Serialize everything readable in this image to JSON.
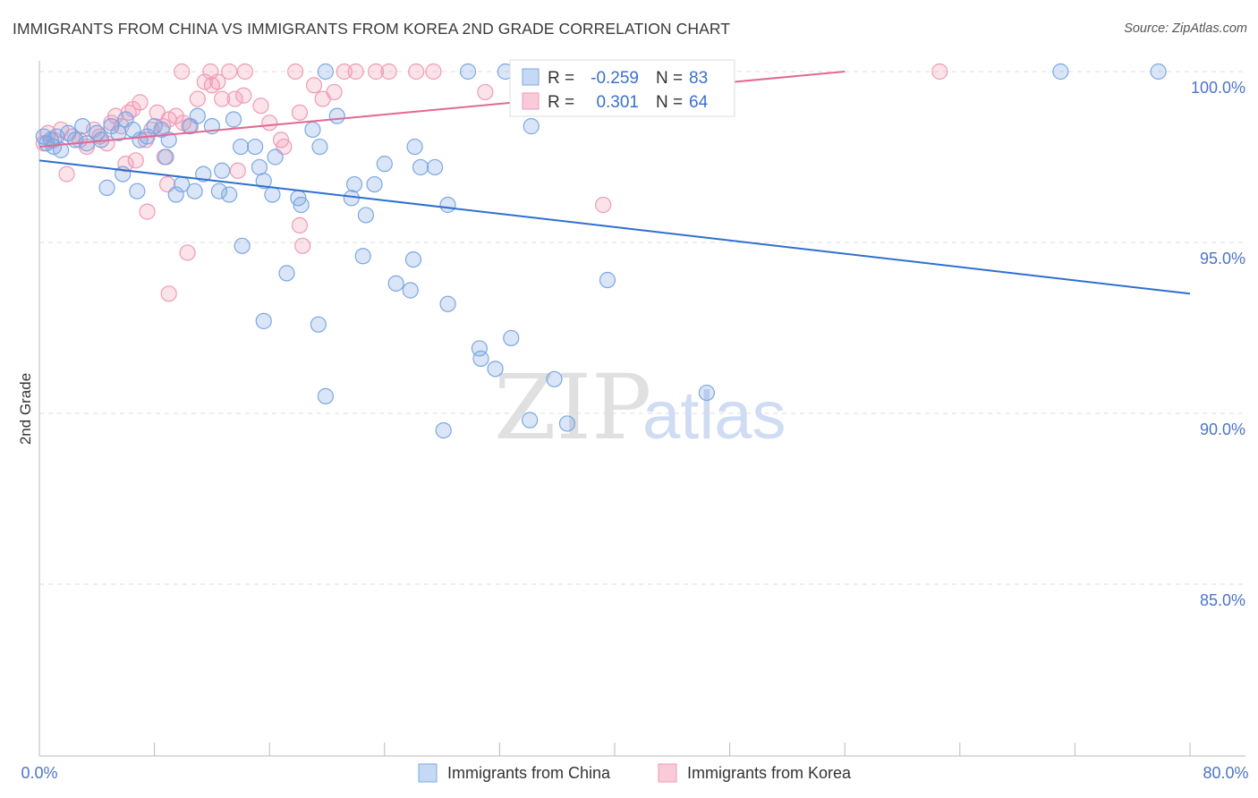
{
  "title": "IMMIGRANTS FROM CHINA VS IMMIGRANTS FROM KOREA 2ND GRADE CORRELATION CHART",
  "source": "Source: ZipAtlas.com",
  "watermark": {
    "zip": "ZIP",
    "atlas": "atlas"
  },
  "stats": {
    "china": {
      "r_label": "R =",
      "r_value": "-0.259",
      "n_label": "N =",
      "n_value": "83"
    },
    "korea": {
      "r_label": "R =",
      "r_value": "0.301",
      "n_label": "N =",
      "n_value": "64"
    }
  },
  "chart_data": {
    "type": "scatter",
    "title": "IMMIGRANTS FROM CHINA VS IMMIGRANTS FROM KOREA 2ND GRADE CORRELATION CHART",
    "xlabel": "",
    "ylabel": "2nd Grade",
    "xlim": [
      0,
      80
    ],
    "ylim": [
      80.0,
      101.0
    ],
    "x_tick_labels": [
      "0.0%",
      "80.0%"
    ],
    "y_ticks": [
      85.0,
      90.0,
      95.0,
      100.0
    ],
    "y_tick_labels": [
      "85.0%",
      "90.0%",
      "95.0%",
      "100.0%"
    ],
    "grid": "horizontal dashed",
    "legend": [
      "Immigrants from China",
      "Immigrants from Korea"
    ],
    "colors": {
      "china": "#7aa7e3",
      "china_line": "#2f6fd0",
      "korea": "#f09ab5",
      "korea_line": "#e06a92",
      "axis_text": "#4c74c9"
    },
    "series": [
      {
        "name": "Immigrants from China",
        "r": -0.259,
        "n": 83,
        "trend": {
          "x": [
            0,
            80
          ],
          "y": [
            97.4,
            93.5
          ]
        },
        "points": [
          [
            0.3,
            98.1
          ],
          [
            0.5,
            97.9
          ],
          [
            0.8,
            98.0
          ],
          [
            1.0,
            97.8
          ],
          [
            1.2,
            98.1
          ],
          [
            1.5,
            97.7
          ],
          [
            2.0,
            98.2
          ],
          [
            2.5,
            98.0
          ],
          [
            3.0,
            98.4
          ],
          [
            3.3,
            97.9
          ],
          [
            4.0,
            98.2
          ],
          [
            4.3,
            98.0
          ],
          [
            5.0,
            98.4
          ],
          [
            5.5,
            98.2
          ],
          [
            6.0,
            98.6
          ],
          [
            6.5,
            98.3
          ],
          [
            7.0,
            98.0
          ],
          [
            7.5,
            98.1
          ],
          [
            8.0,
            98.4
          ],
          [
            8.5,
            98.3
          ],
          [
            9.0,
            98.0
          ],
          [
            10.5,
            98.4
          ],
          [
            11.0,
            98.7
          ],
          [
            12.0,
            98.4
          ],
          [
            13.5,
            98.6
          ],
          [
            14.0,
            97.8
          ],
          [
            15.0,
            97.8
          ],
          [
            5.8,
            97.0
          ],
          [
            4.7,
            96.6
          ],
          [
            6.8,
            96.5
          ],
          [
            8.8,
            97.5
          ],
          [
            9.5,
            96.4
          ],
          [
            9.9,
            96.7
          ],
          [
            10.8,
            96.5
          ],
          [
            11.4,
            97.0
          ],
          [
            12.5,
            96.5
          ],
          [
            12.7,
            97.1
          ],
          [
            13.2,
            96.4
          ],
          [
            15.3,
            97.2
          ],
          [
            15.6,
            96.8
          ],
          [
            16.2,
            96.4
          ],
          [
            16.4,
            97.5
          ],
          [
            18.2,
            96.1
          ],
          [
            18.0,
            96.3
          ],
          [
            19.5,
            97.8
          ],
          [
            19.0,
            98.3
          ],
          [
            20.7,
            98.7
          ],
          [
            21.7,
            96.3
          ],
          [
            21.9,
            96.7
          ],
          [
            22.7,
            95.8
          ],
          [
            23.3,
            96.7
          ],
          [
            24.0,
            97.3
          ],
          [
            26.1,
            97.8
          ],
          [
            26.5,
            97.2
          ],
          [
            27.5,
            97.2
          ],
          [
            28.4,
            96.1
          ],
          [
            14.1,
            94.9
          ],
          [
            17.2,
            94.1
          ],
          [
            22.5,
            94.6
          ],
          [
            24.8,
            93.8
          ],
          [
            25.8,
            93.6
          ],
          [
            26.0,
            94.5
          ],
          [
            28.4,
            93.2
          ],
          [
            15.6,
            92.7
          ],
          [
            19.4,
            92.6
          ],
          [
            30.6,
            91.9
          ],
          [
            30.7,
            91.6
          ],
          [
            31.7,
            91.3
          ],
          [
            32.8,
            92.2
          ],
          [
            19.9,
            90.5
          ],
          [
            28.1,
            89.5
          ],
          [
            34.1,
            89.8
          ],
          [
            35.8,
            91.0
          ],
          [
            36.7,
            89.7
          ],
          [
            39.5,
            93.9
          ],
          [
            46.4,
            90.6
          ],
          [
            34.2,
            98.4
          ],
          [
            19.9,
            100.0
          ],
          [
            29.8,
            100.0
          ],
          [
            32.4,
            100.0
          ],
          [
            33.9,
            100.0
          ],
          [
            71.0,
            100.0
          ],
          [
            77.8,
            100.0
          ]
        ]
      },
      {
        "name": "Immigrants from Korea",
        "r": 0.301,
        "n": 64,
        "trend": {
          "x": [
            0,
            56
          ],
          "y": [
            97.8,
            100.0
          ]
        },
        "points": [
          [
            0.3,
            97.9
          ],
          [
            0.6,
            98.2
          ],
          [
            1.0,
            98.0
          ],
          [
            1.5,
            98.3
          ],
          [
            1.9,
            97.0
          ],
          [
            2.3,
            98.1
          ],
          [
            2.8,
            98.0
          ],
          [
            3.3,
            97.8
          ],
          [
            3.8,
            98.3
          ],
          [
            4.2,
            98.1
          ],
          [
            4.7,
            97.9
          ],
          [
            5.0,
            98.5
          ],
          [
            5.3,
            98.7
          ],
          [
            5.7,
            98.4
          ],
          [
            6.2,
            98.8
          ],
          [
            6.5,
            98.9
          ],
          [
            7.0,
            99.1
          ],
          [
            7.4,
            98.0
          ],
          [
            7.8,
            98.3
          ],
          [
            8.2,
            98.8
          ],
          [
            8.6,
            98.4
          ],
          [
            9.0,
            98.6
          ],
          [
            9.5,
            98.7
          ],
          [
            10.0,
            98.5
          ],
          [
            10.4,
            98.4
          ],
          [
            11.0,
            99.2
          ],
          [
            11.5,
            99.7
          ],
          [
            12.0,
            99.6
          ],
          [
            12.4,
            99.7
          ],
          [
            12.7,
            99.2
          ],
          [
            13.6,
            99.2
          ],
          [
            14.2,
            99.3
          ],
          [
            14.3,
            100.0
          ],
          [
            15.4,
            99.0
          ],
          [
            16.0,
            98.5
          ],
          [
            16.8,
            98.0
          ],
          [
            17.0,
            97.8
          ],
          [
            17.8,
            100.0
          ],
          [
            18.1,
            98.8
          ],
          [
            19.1,
            99.6
          ],
          [
            19.7,
            99.2
          ],
          [
            20.5,
            99.4
          ],
          [
            21.2,
            100.0
          ],
          [
            22.0,
            100.0
          ],
          [
            23.4,
            100.0
          ],
          [
            24.3,
            100.0
          ],
          [
            26.2,
            100.0
          ],
          [
            27.4,
            100.0
          ],
          [
            31.0,
            99.4
          ],
          [
            9.9,
            100.0
          ],
          [
            11.9,
            100.0
          ],
          [
            13.2,
            100.0
          ],
          [
            6.0,
            97.3
          ],
          [
            6.7,
            97.4
          ],
          [
            7.5,
            95.9
          ],
          [
            8.7,
            97.5
          ],
          [
            8.9,
            96.7
          ],
          [
            10.3,
            94.7
          ],
          [
            9.0,
            93.5
          ],
          [
            13.8,
            97.1
          ],
          [
            18.1,
            95.5
          ],
          [
            18.3,
            94.9
          ],
          [
            39.2,
            96.1
          ],
          [
            62.6,
            100.0
          ]
        ]
      }
    ]
  },
  "legend": {
    "china": "Immigrants from China",
    "korea": "Immigrants from Korea"
  }
}
